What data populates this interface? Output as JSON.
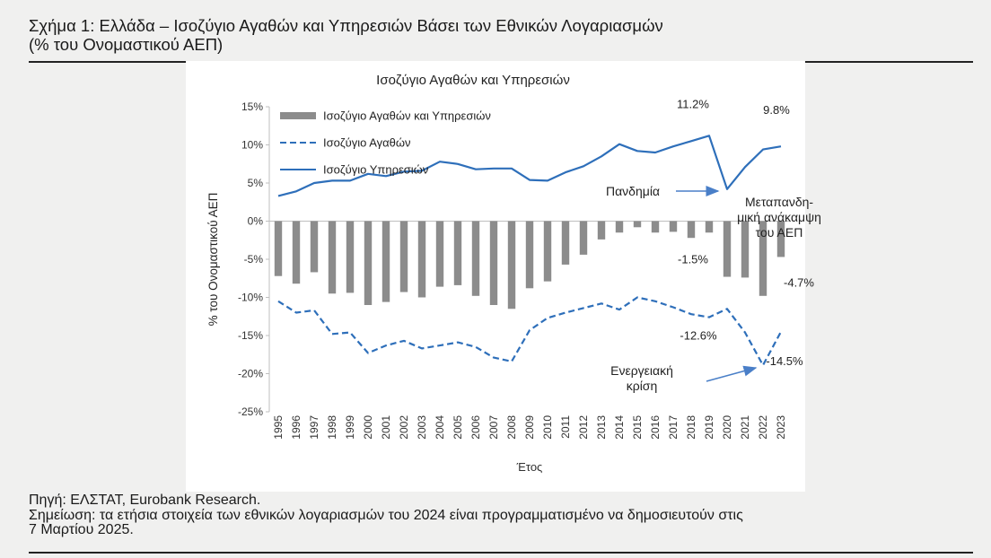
{
  "figure": {
    "title": "Σχήμα 1: Ελλάδα – Ισοζύγιο Αγαθών και Υπηρεσιών Βάσει των Εθνικών Λογαριασμών",
    "title_line2": "(% του Ονομαστικού ΑΕΠ)",
    "source": "Πηγή: ΕΛΣΤΑΤ, Eurobank Research.",
    "note_line1": "Σημείωση: τα ετήσια στοιχεία των εθνικών λογαριασμών του 2024 είναι προγραμματισμένο να δημοσιευτούν στις",
    "note_line2": "7 Μαρτίου 2025."
  },
  "colors": {
    "bars": "#8c8c8c",
    "lines": "#2e6fba",
    "annotation_arrow": "#4a7fc8",
    "background": "#f0f0ef",
    "panel": "#ffffff"
  },
  "chart_data": {
    "type": "bar",
    "title": "Ισοζύγιο Αγαθών και Υπηρεσιών",
    "xlabel": "Έτος",
    "ylabel": "% του Ονομαστικού ΑΕΠ",
    "ylim": [
      -25,
      15
    ],
    "yticks": [
      15,
      10,
      5,
      0,
      -5,
      -10,
      -15,
      -20,
      -25
    ],
    "ytick_labels": [
      "15%",
      "10%",
      "5%",
      "0%",
      "-5%",
      "-10%",
      "-15%",
      "-20%",
      "-25%"
    ],
    "categories": [
      "1995",
      "1996",
      "1997",
      "1998",
      "1999",
      "2000",
      "2001",
      "2002",
      "2003",
      "2004",
      "2005",
      "2006",
      "2007",
      "2008",
      "2009",
      "2010",
      "2011",
      "2012",
      "2013",
      "2014",
      "2015",
      "2016",
      "2017",
      "2018",
      "2019",
      "2020",
      "2021",
      "2022",
      "2023"
    ],
    "series": [
      {
        "name": "Ισοζύγιο Αγαθών και Υπηρεσιών",
        "type": "bar",
        "values": [
          -7.2,
          -8.2,
          -6.7,
          -9.5,
          -9.4,
          -11.0,
          -10.6,
          -9.3,
          -10.0,
          -8.6,
          -8.4,
          -9.8,
          -11.0,
          -11.5,
          -8.8,
          -7.9,
          -5.7,
          -4.4,
          -2.4,
          -1.5,
          -0.8,
          -1.5,
          -1.4,
          -2.2,
          -1.5,
          -7.3,
          -7.4,
          -9.8,
          -4.7
        ]
      },
      {
        "name": "Ισοζύγιο Αγαθών",
        "type": "line",
        "dash": true,
        "values": [
          -10.5,
          -12.0,
          -11.7,
          -14.8,
          -14.6,
          -17.3,
          -16.3,
          -15.7,
          -16.7,
          -16.3,
          -15.9,
          -16.5,
          -17.9,
          -18.4,
          -14.3,
          -12.7,
          -12.0,
          -11.4,
          -10.8,
          -11.6,
          -10.0,
          -10.5,
          -11.3,
          -12.2,
          -12.6,
          -11.5,
          -14.6,
          -18.9,
          -14.5
        ]
      },
      {
        "name": "Ισοζύγιο Υπηρεσιών",
        "type": "line",
        "dash": false,
        "values": [
          3.3,
          3.9,
          5.0,
          5.3,
          5.3,
          6.2,
          5.9,
          6.5,
          6.6,
          7.8,
          7.5,
          6.8,
          6.9,
          6.9,
          5.4,
          5.3,
          6.4,
          7.2,
          8.5,
          10.1,
          9.2,
          9.0,
          9.8,
          10.5,
          11.2,
          4.2,
          7.1,
          9.4,
          9.8
        ]
      }
    ],
    "data_labels": [
      {
        "text": "11.2%",
        "year": "2019",
        "series": "Ισοζύγιο Υπηρεσιών"
      },
      {
        "text": "9.8%",
        "year": "2023",
        "series": "Ισοζύγιο Υπηρεσιών"
      },
      {
        "text": "-1.5%",
        "year": "2019",
        "series": "Ισοζύγιο Αγαθών και Υπηρεσιών"
      },
      {
        "text": "-4.7%",
        "year": "2023",
        "series": "Ισοζύγιο Αγαθών και Υπηρεσιών"
      },
      {
        "text": "-12.6%",
        "year": "2019",
        "series": "Ισοζύγιο Αγαθών"
      },
      {
        "text": "-14.5%",
        "year": "2023",
        "series": "Ισοζύγιο Αγαθών"
      }
    ],
    "annotations": [
      {
        "text": "Πανδημία",
        "year": "2020",
        "arrow": true
      },
      {
        "text_lines": [
          "Μεταπανδη-",
          "μική ανάκαμψη",
          "του ΑΕΠ"
        ],
        "year": "2021"
      },
      {
        "text_lines": [
          "Ενεργειακή",
          "κρίση"
        ],
        "year": "2022",
        "arrow": true
      }
    ],
    "legend": "top-left",
    "grid": false
  }
}
